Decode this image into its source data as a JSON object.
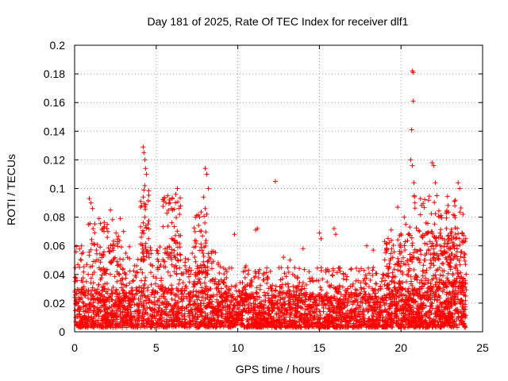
{
  "chart_data": {
    "type": "scatter",
    "title": "Day 181 of 2025, Rate Of TEC Index for receiver dlf1",
    "xlabel": "GPS time / hours",
    "ylabel": "ROTI / TECUs",
    "xlim": [
      0,
      25
    ],
    "ylim": [
      0,
      0.2
    ],
    "xticks": [
      {
        "value": 0,
        "label": "0"
      },
      {
        "value": 5,
        "label": "5"
      },
      {
        "value": 10,
        "label": "10"
      },
      {
        "value": 15,
        "label": "15"
      },
      {
        "value": 20,
        "label": "20"
      },
      {
        "value": 25,
        "label": "25"
      }
    ],
    "yticks": [
      {
        "value": 0,
        "label": "0"
      },
      {
        "value": 0.02,
        "label": "0.02"
      },
      {
        "value": 0.04,
        "label": "0.04"
      },
      {
        "value": 0.06,
        "label": "0.06"
      },
      {
        "value": 0.08,
        "label": "0.08"
      },
      {
        "value": 0.1,
        "label": "0.1"
      },
      {
        "value": 0.12,
        "label": "0.12"
      },
      {
        "value": 0.14,
        "label": "0.14"
      },
      {
        "value": 0.16,
        "label": "0.16"
      },
      {
        "value": 0.18,
        "label": "0.18"
      },
      {
        "value": 0.2,
        "label": "0.2"
      }
    ],
    "grid": true,
    "marker": "+",
    "series": [
      {
        "name": "ROTI",
        "color": "#ff0000",
        "points": [
          [
            20.7,
            0.182
          ],
          [
            20.75,
            0.181
          ],
          [
            20.75,
            0.161
          ],
          [
            20.65,
            0.141
          ],
          [
            20.6,
            0.12
          ],
          [
            20.7,
            0.116
          ],
          [
            20.8,
            0.104
          ],
          [
            20.85,
            0.09
          ],
          [
            21.9,
            0.118
          ],
          [
            22.0,
            0.116
          ],
          [
            22.1,
            0.104
          ],
          [
            22.2,
            0.095
          ],
          [
            23.5,
            0.104
          ],
          [
            23.6,
            0.1
          ],
          [
            23.3,
            0.088
          ],
          [
            23.8,
            0.082
          ],
          [
            12.3,
            0.105
          ],
          [
            11.2,
            0.072
          ],
          [
            11.1,
            0.071
          ],
          [
            9.8,
            0.068
          ],
          [
            8.0,
            0.114
          ],
          [
            8.1,
            0.11
          ],
          [
            8.2,
            0.1
          ],
          [
            7.9,
            0.094
          ],
          [
            8.0,
            0.086
          ],
          [
            8.1,
            0.082
          ],
          [
            4.2,
            0.129
          ],
          [
            4.25,
            0.125
          ],
          [
            4.3,
            0.12
          ],
          [
            4.35,
            0.114
          ],
          [
            4.4,
            0.11
          ],
          [
            4.3,
            0.102
          ],
          [
            4.2,
            0.094
          ],
          [
            4.1,
            0.088
          ],
          [
            4.3,
            0.08
          ],
          [
            4.2,
            0.076
          ],
          [
            6.3,
            0.1
          ],
          [
            6.2,
            0.096
          ],
          [
            5.5,
            0.093
          ],
          [
            5.6,
            0.09
          ],
          [
            6.0,
            0.085
          ],
          [
            0.9,
            0.093
          ],
          [
            1.0,
            0.09
          ],
          [
            1.1,
            0.086
          ],
          [
            1.5,
            0.079
          ],
          [
            2.2,
            0.085
          ],
          [
            2.8,
            0.079
          ],
          [
            3.0,
            0.07
          ],
          [
            2.0,
            0.075
          ],
          [
            1.8,
            0.07
          ],
          [
            0.4,
            0.05
          ],
          [
            0.3,
            0.045
          ],
          [
            15.0,
            0.069
          ],
          [
            15.1,
            0.065
          ],
          [
            15.9,
            0.072
          ],
          [
            16.0,
            0.068
          ],
          [
            14.0,
            0.058
          ],
          [
            19.4,
            0.071
          ],
          [
            19.8,
            0.087
          ],
          [
            20.2,
            0.08
          ],
          [
            20.3,
            0.075
          ],
          [
            19.0,
            0.063
          ],
          [
            17.9,
            0.06
          ],
          [
            18.3,
            0.057
          ],
          [
            12.8,
            0.052
          ],
          [
            13.2,
            0.05
          ],
          [
            10.5,
            0.046
          ]
        ],
        "bursts": [
          {
            "x_range": [
              0.0,
              3.2
            ],
            "y_range": [
              0.003,
              0.03
            ],
            "count": 450
          },
          {
            "x_range": [
              3.2,
              9.0
            ],
            "y_range": [
              0.003,
              0.03
            ],
            "count": 700
          },
          {
            "x_range": [
              9.0,
              19.0
            ],
            "y_range": [
              0.003,
              0.026
            ],
            "count": 1300
          },
          {
            "x_range": [
              19.0,
              24.0
            ],
            "y_range": [
              0.003,
              0.034
            ],
            "count": 800
          },
          {
            "x_range": [
              0.0,
              9.0
            ],
            "y_range": [
              0.03,
              0.06
            ],
            "count": 260
          },
          {
            "x_range": [
              9.0,
              19.0
            ],
            "y_range": [
              0.026,
              0.045
            ],
            "count": 280
          },
          {
            "x_range": [
              19.0,
              24.0
            ],
            "y_range": [
              0.034,
              0.07
            ],
            "count": 260
          },
          {
            "x_range": [
              0.8,
              2.8
            ],
            "y_range": [
              0.04,
              0.08
            ],
            "count": 60
          },
          {
            "x_range": [
              4.0,
              4.6
            ],
            "y_range": [
              0.05,
              0.1
            ],
            "count": 40
          },
          {
            "x_range": [
              5.4,
              6.6
            ],
            "y_range": [
              0.045,
              0.095
            ],
            "count": 60
          },
          {
            "x_range": [
              7.3,
              8.3
            ],
            "y_range": [
              0.04,
              0.085
            ],
            "count": 50
          },
          {
            "x_range": [
              20.4,
              23.9
            ],
            "y_range": [
              0.05,
              0.095
            ],
            "count": 120
          }
        ]
      }
    ]
  }
}
